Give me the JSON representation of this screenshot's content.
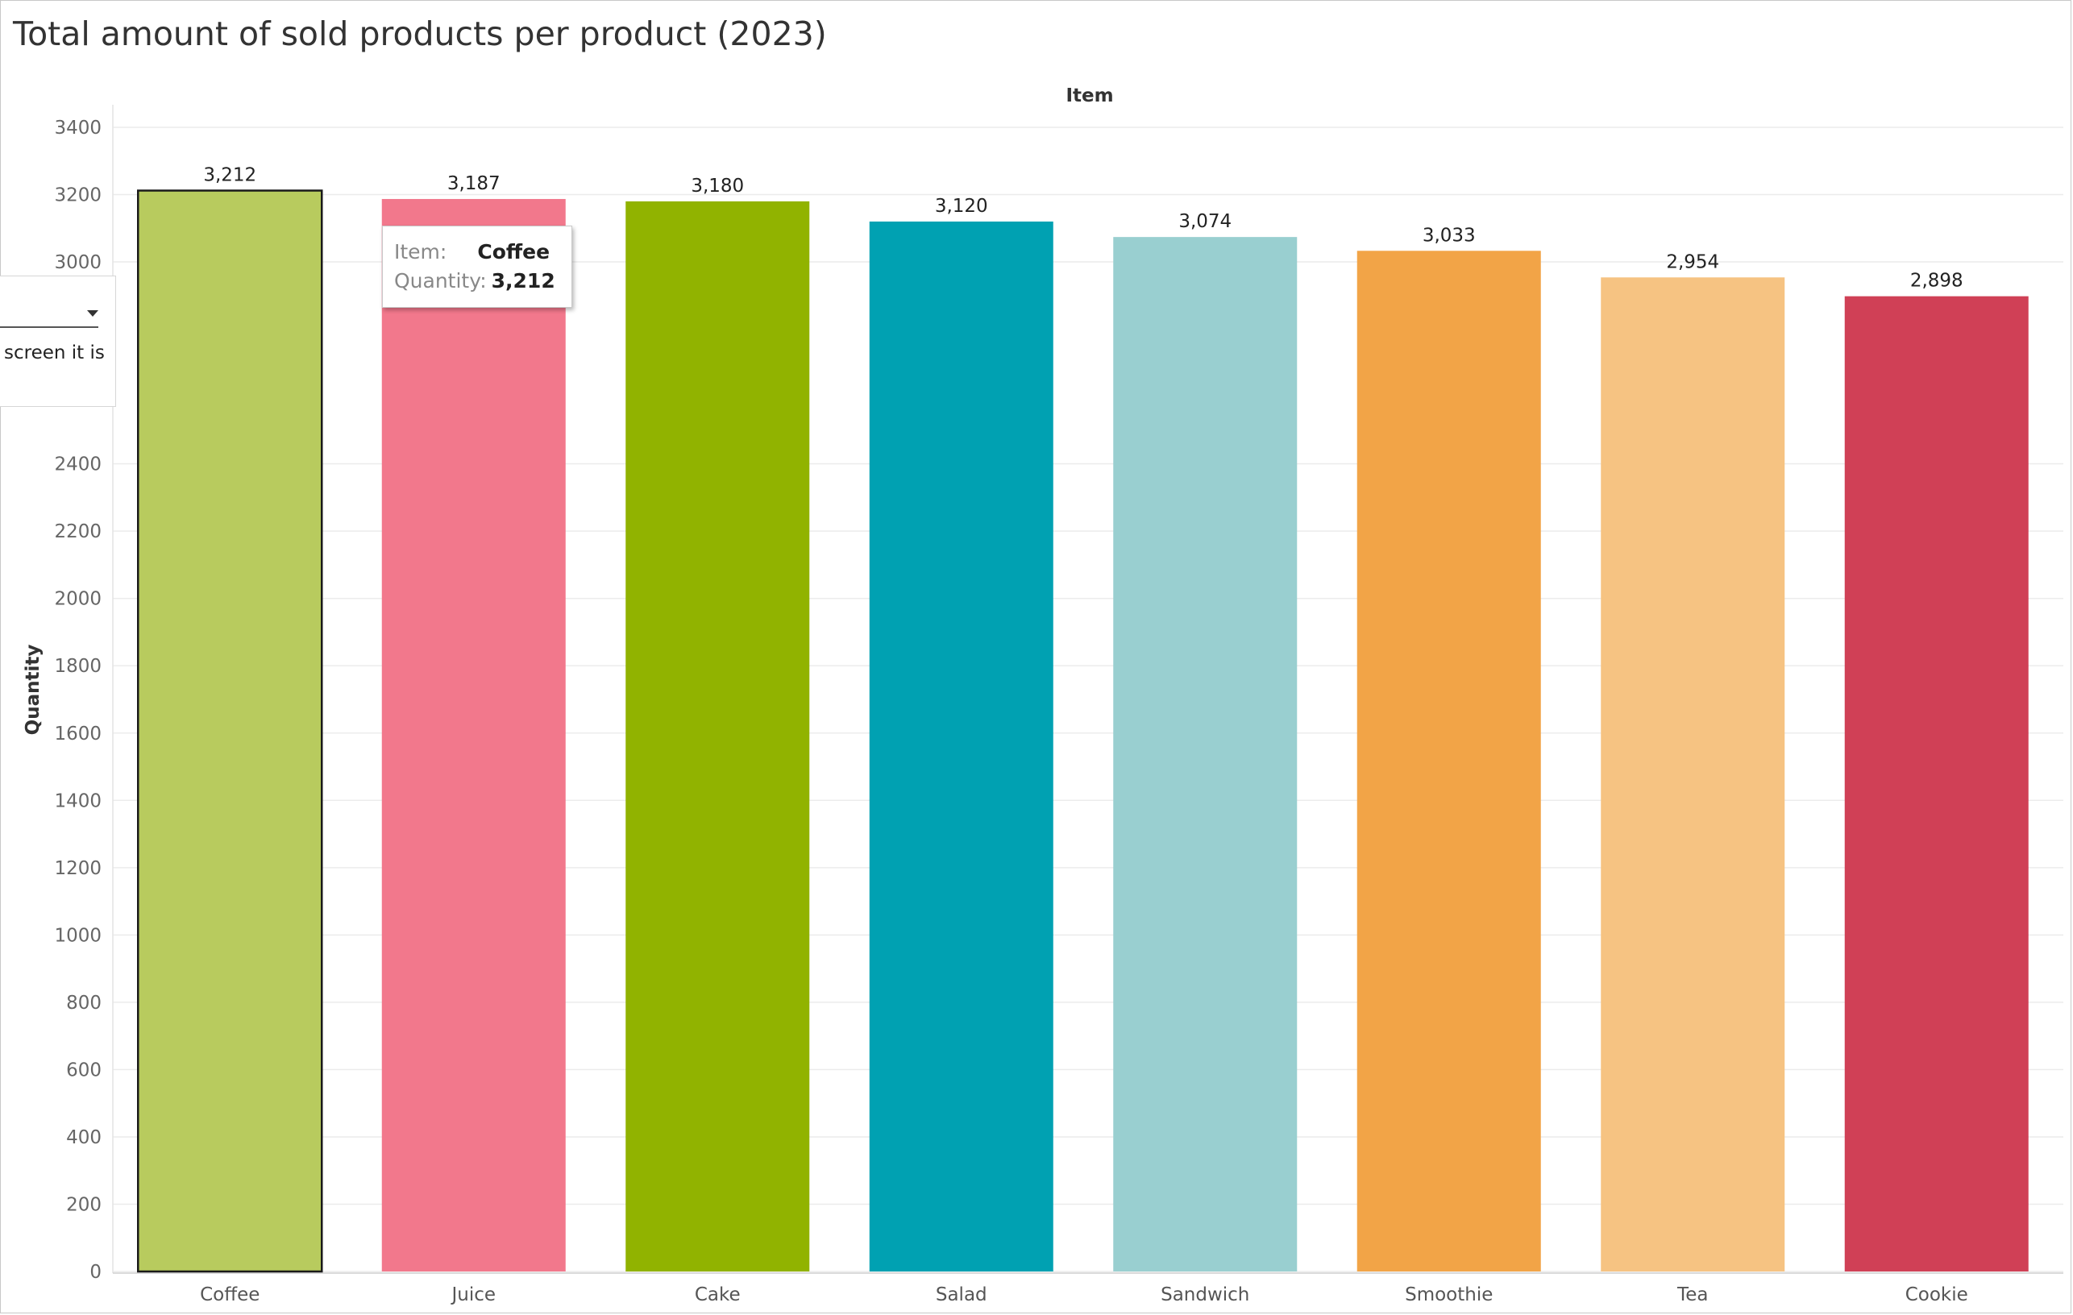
{
  "title": "Total amount of sold products per product (2023)",
  "chart_data": {
    "type": "bar",
    "title": "Total amount of sold products per product (2023)",
    "xlabel": "Item",
    "ylabel": "Quantity",
    "categories": [
      "Coffee",
      "Juice",
      "Cake",
      "Salad",
      "Sandwich",
      "Smoothie",
      "Tea",
      "Cookie"
    ],
    "values": [
      3212,
      3187,
      3180,
      3120,
      3074,
      3033,
      2954,
      2898
    ],
    "value_labels": [
      "3,212",
      "3,187",
      "3,180",
      "3,120",
      "3,074",
      "3,033",
      "2,954",
      "2,898"
    ],
    "colors": [
      "#b8cb5e",
      "#f2788c",
      "#91b300",
      "#00a1b2",
      "#99cfd0",
      "#f2a447",
      "#f6c382",
      "#d04056"
    ],
    "ylim": [
      0,
      3400
    ],
    "yticks": [
      0,
      200,
      400,
      600,
      800,
      1000,
      1200,
      1400,
      1600,
      1800,
      2000,
      2200,
      2400,
      3000,
      3200,
      3400
    ],
    "grid": true,
    "highlighted": "Coffee"
  },
  "tooltip": {
    "item_key": "Item:",
    "item_value": "Coffee",
    "quantity_key": "Quantity:",
    "quantity_value": "3,212"
  },
  "side_panel": {
    "text": "screen it is"
  }
}
